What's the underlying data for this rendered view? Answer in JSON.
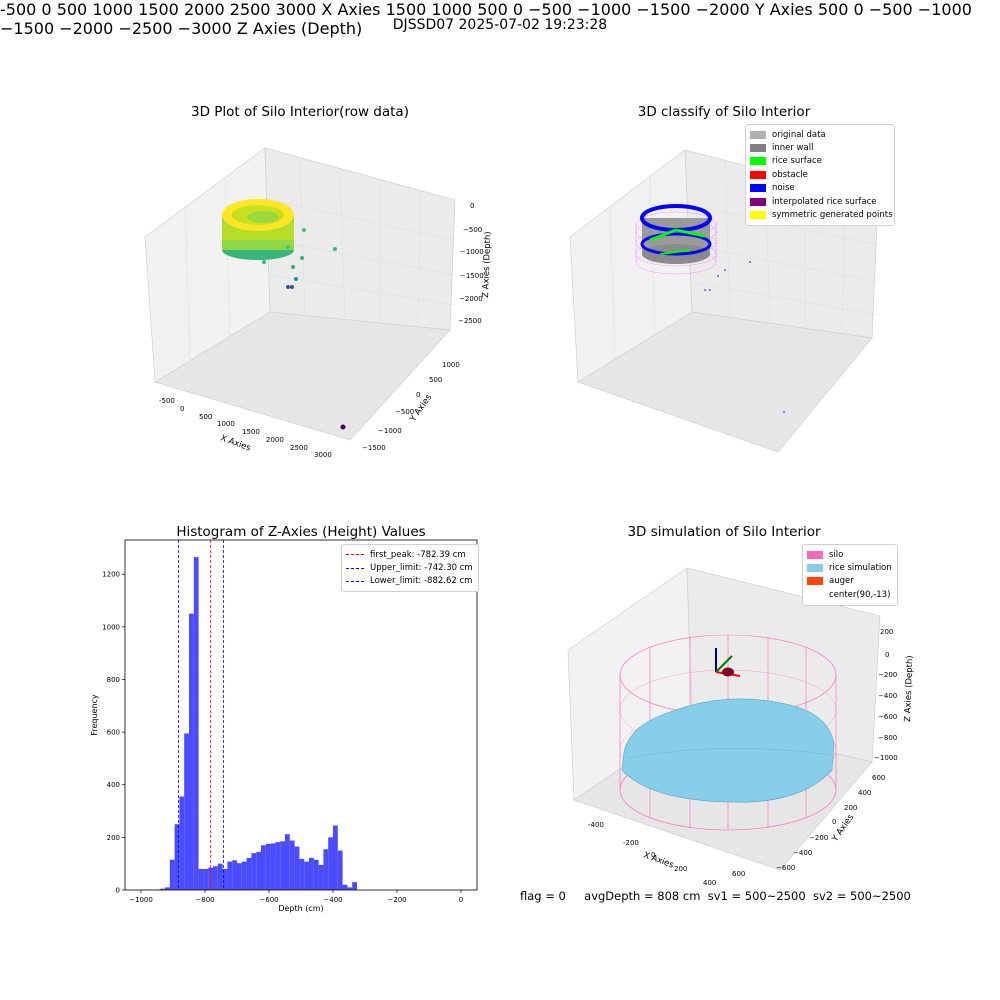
{
  "figure": {
    "suptitle": "DJSSD07 2025-07-02 19:23:28",
    "footer": {
      "flag": "flag = 0",
      "avg_depth": "avgDepth = 808 cm",
      "sv1": "sv1 = 500~2500",
      "sv2": "sv2 = 500~2500"
    }
  },
  "panels": {
    "raw": {
      "title": "3D Plot of Silo Interior(row data)",
      "xlabel": "X Axies",
      "ylabel": "Y Axies",
      "zlabel": "Z Axies (Depth)",
      "xticks": [
        "-500",
        "0",
        "500",
        "1000",
        "1500",
        "2000",
        "2500",
        "3000"
      ],
      "yticks": [
        "1000",
        "500",
        "0",
        "−500",
        "−1000",
        "−1500"
      ],
      "zticks": [
        "0",
        "−500",
        "−1000",
        "−1500",
        "−2000",
        "−2500"
      ],
      "colormap": [
        "#fde725",
        "#8fd744",
        "#35b779",
        "#21918c",
        "#31688e",
        "#440154"
      ]
    },
    "classify": {
      "title": "3D classify of Silo Interior",
      "xlabel": "X Axies",
      "ylabel": "Y Axies",
      "zlabel": "Z Axies (Depth)",
      "xticks": [
        "-500",
        "0",
        "500",
        "1000",
        "1500",
        "2000",
        "2500",
        "3000"
      ],
      "yticks": [
        "1500",
        "1000",
        "500",
        "0",
        "−500",
        "−1000",
        "−1500",
        "−2000"
      ],
      "zticks": [
        "500",
        "0",
        "−500",
        "−1000",
        "−1500",
        "−2000",
        "−2500",
        "−3000"
      ],
      "legend": [
        {
          "label": "original data",
          "color": "#b0b0b0"
        },
        {
          "label": "inner wall",
          "color": "#808080"
        },
        {
          "label": "rice surface",
          "color": "#00ff00"
        },
        {
          "label": "obstacle",
          "color": "#ff0000"
        },
        {
          "label": "noise",
          "color": "#0000ff"
        },
        {
          "label": "interpolated rice surface",
          "color": "#800080"
        },
        {
          "label": "symmetric generated points",
          "color": "#ffff00"
        }
      ]
    },
    "simulation": {
      "title": "3D simulation of Silo Interior",
      "xlabel": "X Axies",
      "ylabel": "Y Axies",
      "zlabel": "Z Axies (Depth)",
      "xticks": [
        "-400",
        "-200",
        "0",
        "200",
        "400",
        "600"
      ],
      "yticks": [
        "600",
        "400",
        "200",
        "0",
        "−200",
        "−400",
        "−600"
      ],
      "zticks": [
        "200",
        "0",
        "−200",
        "−400",
        "−600",
        "−800",
        "−1000"
      ],
      "legend": [
        {
          "label": "silo",
          "color": "#ff69b4"
        },
        {
          "label": "rice simulation",
          "color": "#87ceeb"
        },
        {
          "label": "auger",
          "color": "#ff4500"
        },
        {
          "label": "center(90,-13)",
          "color": "#ffffff"
        }
      ]
    }
  },
  "chart_data": {
    "type": "bar",
    "title": "Histogram of Z-Axies (Height) Values",
    "xlabel": "Depth (cm)",
    "ylabel": "Frequency",
    "xlim": [
      -1050,
      50
    ],
    "ylim": [
      0,
      1330
    ],
    "xticks": [
      -1000,
      -800,
      -600,
      -400,
      -200,
      0
    ],
    "yticks": [
      0,
      200,
      400,
      600,
      800,
      1000,
      1200
    ],
    "bin_width": 15,
    "bar_color": "#4b4bff",
    "bins": [
      [
        -1000,
        2
      ],
      [
        -985,
        2
      ],
      [
        -970,
        0
      ],
      [
        -955,
        2
      ],
      [
        -940,
        5
      ],
      [
        -925,
        10
      ],
      [
        -910,
        115
      ],
      [
        -895,
        250
      ],
      [
        -880,
        355
      ],
      [
        -865,
        595
      ],
      [
        -850,
        1050
      ],
      [
        -835,
        1265
      ],
      [
        -820,
        80
      ],
      [
        -805,
        80
      ],
      [
        -790,
        85
      ],
      [
        -775,
        90
      ],
      [
        -760,
        100
      ],
      [
        -745,
        80
      ],
      [
        -730,
        108
      ],
      [
        -715,
        113
      ],
      [
        -700,
        102
      ],
      [
        -685,
        108
      ],
      [
        -670,
        122
      ],
      [
        -655,
        140
      ],
      [
        -640,
        145
      ],
      [
        -625,
        170
      ],
      [
        -610,
        175
      ],
      [
        -595,
        177
      ],
      [
        -580,
        182
      ],
      [
        -565,
        185
      ],
      [
        -550,
        212
      ],
      [
        -535,
        188
      ],
      [
        -520,
        165
      ],
      [
        -505,
        118
      ],
      [
        -490,
        108
      ],
      [
        -475,
        122
      ],
      [
        -460,
        115
      ],
      [
        -445,
        95
      ],
      [
        -430,
        155
      ],
      [
        -415,
        200
      ],
      [
        -400,
        245
      ],
      [
        -385,
        150
      ],
      [
        -370,
        20
      ],
      [
        -355,
        10
      ],
      [
        -340,
        30
      ]
    ],
    "vlines": [
      {
        "label": "first_peak: -782.39 cm",
        "value": -782.39,
        "color": "#ff0000"
      },
      {
        "label": "Upper_limit: -742.30 cm",
        "value": -742.3,
        "color": "#0000ff"
      },
      {
        "label": "Lower_limit: -882.62 cm",
        "value": -882.62,
        "color": "#0000ff"
      }
    ],
    "legend_position": "upper right"
  }
}
